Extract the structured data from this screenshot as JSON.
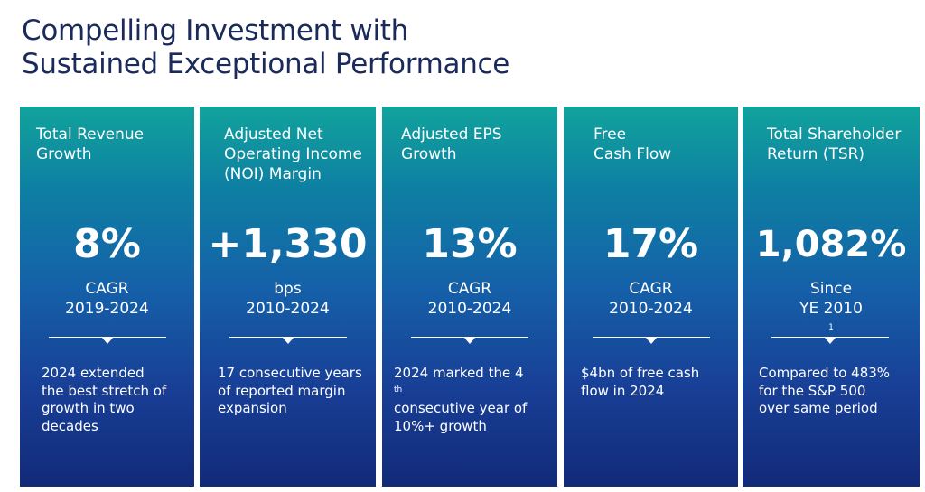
{
  "title": {
    "line1": "Compelling Investment with",
    "line2": "Sustained Exceptional Performance"
  },
  "cards": [
    {
      "heading": [
        "Total Revenue",
        "Growth"
      ],
      "value": "8%",
      "sub": [
        "CAGR",
        "2019-2024"
      ],
      "desc": [
        "2024 extended",
        "the best stretch of",
        "growth in two",
        "decades"
      ]
    },
    {
      "heading": [
        "Adjusted Net",
        "Operating Income",
        "(NOI) Margin"
      ],
      "value": "+1,330",
      "sub": [
        "bps",
        "2010-2024"
      ],
      "desc": [
        "17 consecutive years",
        "of reported margin",
        "expansion"
      ]
    },
    {
      "heading": [
        "Adjusted EPS",
        "Growth"
      ],
      "value": "13%",
      "sub": [
        "CAGR",
        "2010-2024"
      ],
      "desc_line1_pre": "2024 marked the 4",
      "desc_line1_sup": "th",
      "desc": [
        "consecutive year of",
        "10%+ growth"
      ]
    },
    {
      "heading": [
        "Free",
        "Cash Flow"
      ],
      "value": "17%",
      "sub": [
        "CAGR",
        "2010-2024"
      ],
      "desc": [
        "$4bn of free cash",
        "flow in 2024"
      ]
    },
    {
      "heading": [
        "Total Shareholder",
        "Return (TSR)"
      ],
      "value": "1,082%",
      "sub_line1": "Since",
      "sub_line2_pre": "YE 2010",
      "sub_line2_sup": "1",
      "desc": [
        "Compared to 483%",
        "for the S&P 500",
        "over same period"
      ]
    }
  ],
  "colors": {
    "title": "#1a2a5a",
    "card_top": "#11a39c",
    "card_bottom": "#122a78",
    "text": "#ffffff"
  }
}
